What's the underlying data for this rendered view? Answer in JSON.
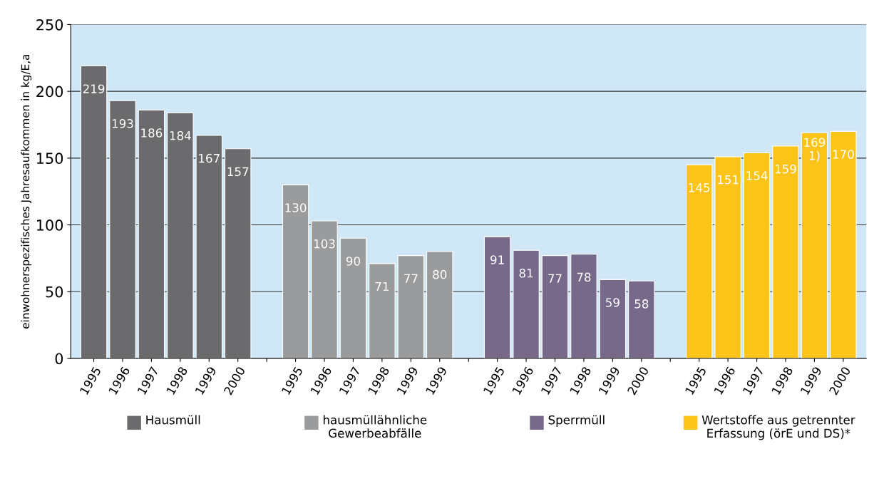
{
  "chart_data": {
    "type": "bar",
    "ylabel": "einwohnerspezifisches Jahresaufkommen in kg/E,a",
    "categories": [
      "1995",
      "1996",
      "1997",
      "1998",
      "1999",
      "2000",
      null,
      "1995",
      "1996",
      "1997",
      "1998",
      "1999",
      "1999",
      null,
      "1995",
      "1996",
      "1997",
      "1998",
      "1999",
      "2000",
      null,
      "1995",
      "1996",
      "1997",
      "1998",
      "1999",
      "2000"
    ],
    "series": [
      {
        "name": "Hausmüll",
        "color": "#6b6b6d",
        "values": [
          219,
          193,
          186,
          184,
          167,
          157,
          null,
          null,
          null,
          null,
          null,
          null,
          null,
          null,
          null,
          null,
          null,
          null,
          null,
          null,
          null,
          null,
          null,
          null,
          null,
          null,
          null
        ],
        "value_labels": [
          "219",
          "193",
          "186",
          "184",
          "167",
          "157",
          null,
          null,
          null,
          null,
          null,
          null,
          null,
          null,
          null,
          null,
          null,
          null,
          null,
          null,
          null,
          null,
          null,
          null,
          null,
          null,
          null
        ]
      },
      {
        "name": "hausmüllähnliche\nGewerbeabfälle",
        "color": "#9a9b9d",
        "values": [
          null,
          null,
          null,
          null,
          null,
          null,
          null,
          130,
          103,
          90,
          71,
          77,
          80,
          null,
          null,
          null,
          null,
          null,
          null,
          null,
          null,
          null,
          null,
          null,
          null,
          null,
          null
        ],
        "value_labels": [
          null,
          null,
          null,
          null,
          null,
          null,
          null,
          "130",
          "103",
          "90",
          "71",
          "77",
          "80",
          null,
          null,
          null,
          null,
          null,
          null,
          null,
          null,
          null,
          null,
          null,
          null,
          null,
          null
        ]
      },
      {
        "name": "Sperrmüll",
        "color": "#76698a",
        "values": [
          null,
          null,
          null,
          null,
          null,
          null,
          null,
          null,
          null,
          null,
          null,
          null,
          null,
          null,
          91,
          81,
          77,
          78,
          59,
          58,
          null,
          null,
          null,
          null,
          null,
          null,
          null
        ],
        "value_labels": [
          null,
          null,
          null,
          null,
          null,
          null,
          null,
          null,
          null,
          null,
          null,
          null,
          null,
          null,
          "91",
          "81",
          "77",
          "78",
          "59",
          "58",
          null,
          null,
          null,
          null,
          null,
          null,
          null
        ]
      },
      {
        "name": "Wertstoffe aus getrennter\nErfassung (örE und DS)*",
        "color": "#fcc419",
        "values": [
          null,
          null,
          null,
          null,
          null,
          null,
          null,
          null,
          null,
          null,
          null,
          null,
          null,
          null,
          null,
          null,
          null,
          null,
          null,
          null,
          null,
          145,
          151,
          154,
          159,
          169,
          170
        ],
        "value_labels": [
          null,
          null,
          null,
          null,
          null,
          null,
          null,
          null,
          null,
          null,
          null,
          null,
          null,
          null,
          null,
          null,
          null,
          null,
          null,
          null,
          null,
          "145",
          "151",
          "154",
          "159",
          "169\n1)",
          "170"
        ]
      }
    ],
    "ylim": [
      0,
      250
    ],
    "yticks": [
      0,
      50,
      100,
      150,
      200,
      250
    ],
    "grid": "y",
    "legend": "bottom"
  }
}
